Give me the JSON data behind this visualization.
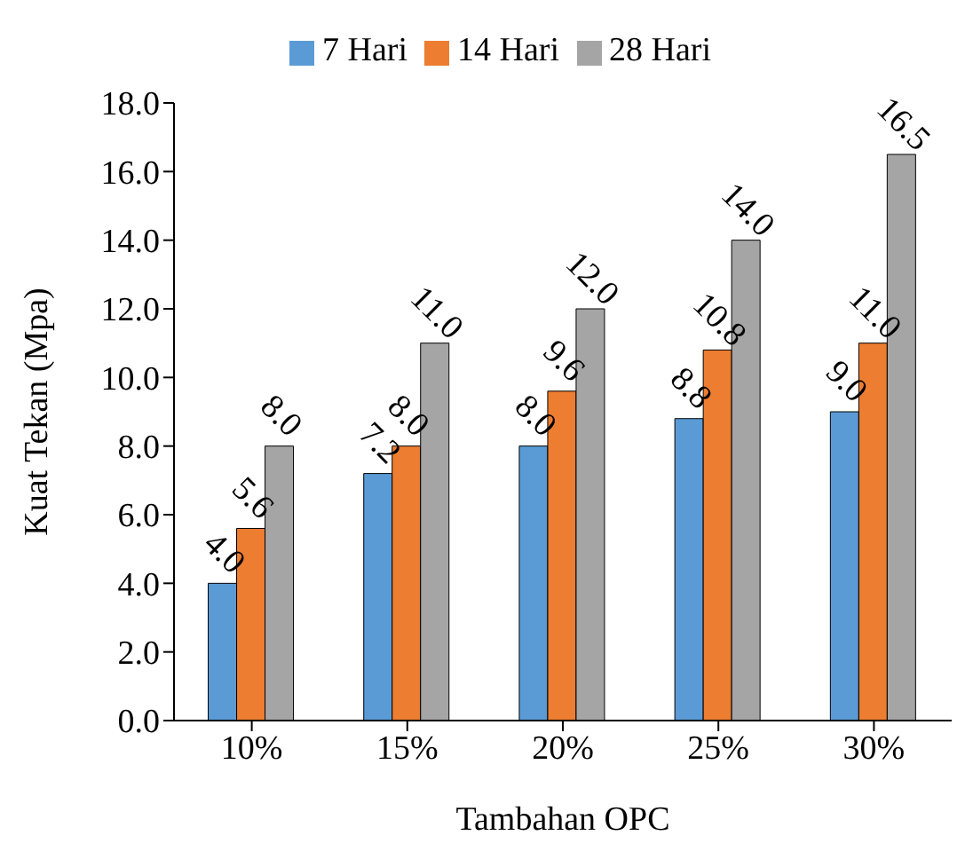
{
  "chart_data": {
    "type": "bar",
    "xlabel": "Tambahan OPC",
    "ylabel": "Kuat Tekan (Mpa)",
    "categories": [
      "10%",
      "15%",
      "20%",
      "25%",
      "30%"
    ],
    "series": [
      {
        "name": "7 Hari",
        "color": "#5b9bd5",
        "values": [
          4.0,
          7.2,
          8.0,
          8.8,
          9.0
        ],
        "value_labels": [
          "4.0",
          "7.2",
          "8.0",
          "8.8",
          "9.0"
        ]
      },
      {
        "name": "14 Hari",
        "color": "#ed7d31",
        "values": [
          5.6,
          8.0,
          9.6,
          10.8,
          11.0
        ],
        "value_labels": [
          "5.6",
          "8.0",
          "9.6",
          "10.8",
          "11.0"
        ]
      },
      {
        "name": "28 Hari",
        "color": "#a5a5a5",
        "values": [
          8.0,
          11.0,
          12.0,
          14.0,
          16.5
        ],
        "value_labels": [
          "8.0",
          "11.0",
          "12.0",
          "14.0",
          "16.5"
        ]
      }
    ],
    "ylim": [
      0,
      18
    ],
    "yticks": [
      {
        "value": 0,
        "label": "0.0"
      },
      {
        "value": 2,
        "label": "2.0"
      },
      {
        "value": 4,
        "label": "4.0"
      },
      {
        "value": 6,
        "label": "6.0"
      },
      {
        "value": 8,
        "label": "8.0"
      },
      {
        "value": 10,
        "label": "10.0"
      },
      {
        "value": 12,
        "label": "12.0"
      },
      {
        "value": 14,
        "label": "14.0"
      },
      {
        "value": 16,
        "label": "16.0"
      },
      {
        "value": 18,
        "label": "18.0"
      }
    ],
    "grid": false,
    "legend": "top"
  }
}
